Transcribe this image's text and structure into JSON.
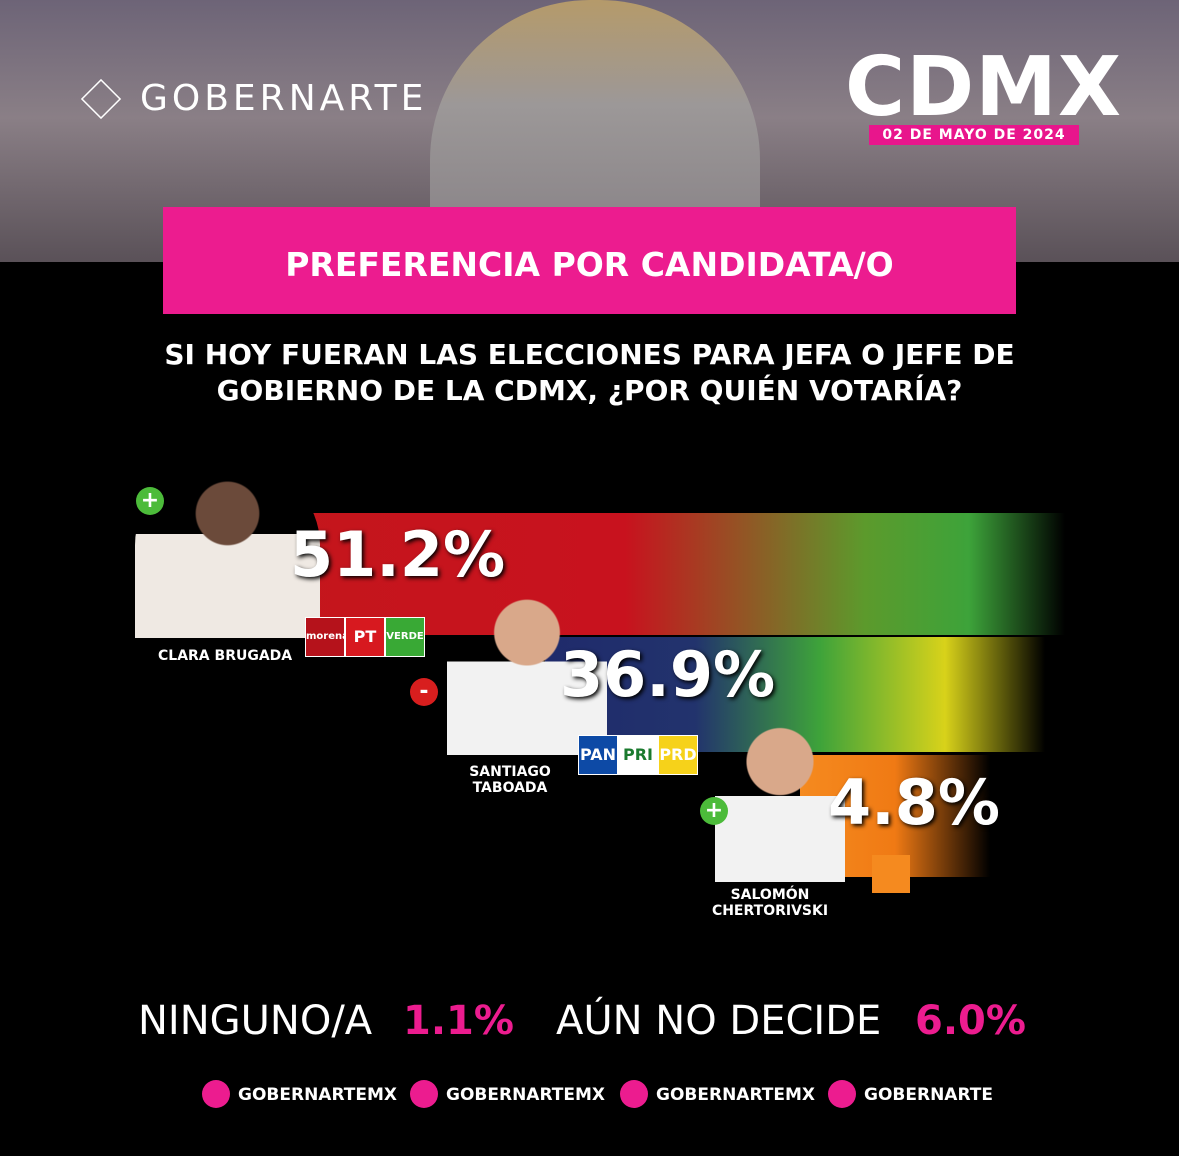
{
  "brand": "GOBERNARTE",
  "header": {
    "title": "CDMX",
    "date": "02 DE MAYO DE 2024"
  },
  "section_title": "PREFERENCIA POR CANDIDATA/O",
  "question": [
    "SI HOY FUERAN LAS ELECCIONES PARA JEFA O JEFE DE",
    "GOBIERNO DE LA CDMX, ¿POR QUIÉN VOTARÍA?"
  ],
  "candidates": [
    {
      "name": [
        "CLARA BRUGADA"
      ],
      "value": "51.2%",
      "trend": "+",
      "parties": [
        "morena",
        "PT",
        "VERDE"
      ]
    },
    {
      "name": [
        "SANTIAGO",
        "TABOADA"
      ],
      "value": "36.9%",
      "trend": "-",
      "parties": [
        "PAN",
        "PRI",
        "PRD"
      ]
    },
    {
      "name": [
        "SALOMÓN",
        "CHERTORIVSKI"
      ],
      "value": "4.8%",
      "trend": "+",
      "parties": []
    }
  ],
  "others": [
    {
      "label": "NINGUNO/A",
      "value": "1.1%"
    },
    {
      "label": "AÚN NO DECIDE",
      "value": "6.0%"
    }
  ],
  "social": [
    "GOBERNARTEMX",
    "GOBERNARTEMX",
    "GOBERNARTEMX",
    "GOBERNARTE"
  ]
}
